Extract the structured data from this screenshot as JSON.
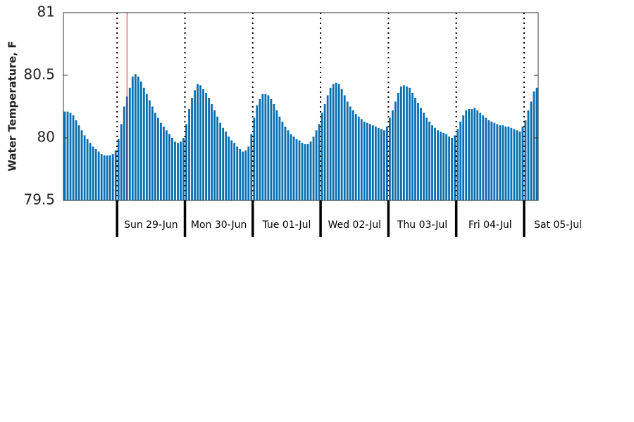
{
  "chart_data": {
    "type": "bar",
    "ylabel": "Water Temperature, F",
    "color": "#0a6fb0",
    "now_index": 22,
    "now_color": "#e8252a",
    "ylim": [
      79.5,
      81
    ],
    "yticks": [
      79.5,
      80,
      80.5,
      81
    ],
    "categories": [
      null,
      null,
      null,
      null,
      null,
      null,
      null,
      null,
      null,
      null,
      null,
      null,
      null,
      null,
      null,
      null,
      null,
      null,
      null,
      "Sun 29-Jun",
      null,
      null,
      null,
      null,
      null,
      null,
      null,
      null,
      null,
      null,
      null,
      null,
      null,
      null,
      null,
      null,
      null,
      null,
      null,
      null,
      null,
      null,
      null,
      "Mon 30-Jun",
      null,
      null,
      null,
      null,
      null,
      null,
      null,
      null,
      null,
      null,
      null,
      null,
      null,
      null,
      null,
      null,
      null,
      null,
      null,
      null,
      null,
      null,
      null,
      "Tue 01-Jul",
      null,
      null,
      null,
      null,
      null,
      null,
      null,
      null,
      null,
      null,
      null,
      null,
      null,
      null,
      null,
      null,
      null,
      null,
      null,
      null,
      null,
      null,
      null,
      "Wed 02-Jul",
      null,
      null,
      null,
      null,
      null,
      null,
      null,
      null,
      null,
      null,
      null,
      null,
      null,
      null,
      null,
      null,
      null,
      null,
      null,
      null,
      null,
      null,
      null,
      "Thu 03-Jul",
      null,
      null,
      null,
      null,
      null,
      null,
      null,
      null,
      null,
      null,
      null,
      null,
      null,
      null,
      null,
      null,
      null,
      null,
      null,
      null,
      null,
      null,
      null,
      "Fri 04-Jul",
      null,
      null,
      null,
      null,
      null,
      null,
      null,
      null,
      null,
      null,
      null,
      null,
      null,
      null,
      null,
      null,
      null,
      null,
      null,
      null,
      null,
      null,
      null,
      "Sat 05-Jul",
      null,
      null,
      null,
      null
    ],
    "values": [
      80.21,
      80.21,
      80.2,
      80.18,
      80.14,
      80.1,
      80.06,
      80.02,
      79.99,
      79.96,
      79.93,
      79.91,
      79.89,
      79.87,
      79.86,
      79.86,
      79.86,
      79.87,
      79.9,
      79.99,
      80.11,
      80.25,
      80.33,
      80.4,
      80.49,
      80.51,
      80.49,
      80.45,
      80.4,
      80.35,
      80.3,
      80.25,
      80.2,
      80.16,
      80.12,
      80.09,
      80.06,
      80.03,
      80.0,
      79.97,
      79.96,
      79.97,
      80.0,
      80.11,
      80.23,
      80.32,
      80.38,
      80.43,
      80.42,
      80.39,
      80.36,
      80.32,
      80.27,
      80.22,
      80.17,
      80.12,
      80.08,
      80.05,
      80.01,
      79.98,
      79.96,
      79.93,
      79.91,
      79.89,
      79.9,
      79.93,
      80.03,
      80.16,
      80.26,
      80.31,
      80.35,
      80.35,
      80.34,
      80.31,
      80.27,
      80.22,
      80.17,
      80.13,
      80.09,
      80.06,
      80.03,
      80.01,
      79.99,
      79.98,
      79.96,
      79.95,
      79.95,
      79.97,
      80.01,
      80.06,
      80.11,
      80.2,
      80.27,
      80.34,
      80.4,
      80.43,
      80.44,
      80.43,
      80.39,
      80.34,
      80.29,
      80.25,
      80.22,
      80.19,
      80.17,
      80.15,
      80.13,
      80.12,
      80.11,
      80.1,
      80.09,
      80.08,
      80.07,
      80.06,
      80.09,
      80.16,
      80.22,
      80.29,
      80.36,
      80.41,
      80.42,
      80.41,
      80.4,
      80.36,
      80.32,
      80.28,
      80.24,
      80.2,
      80.16,
      80.13,
      80.1,
      80.08,
      80.06,
      80.05,
      80.04,
      80.03,
      80.01,
      80.0,
      80.02,
      80.07,
      80.13,
      80.18,
      80.22,
      80.23,
      80.23,
      80.24,
      80.22,
      80.2,
      80.18,
      80.16,
      80.14,
      80.13,
      80.12,
      80.11,
      80.1,
      80.1,
      80.09,
      80.09,
      80.08,
      80.07,
      80.06,
      80.05,
      80.09,
      80.14,
      80.22,
      80.29,
      80.37,
      80.4
    ]
  }
}
